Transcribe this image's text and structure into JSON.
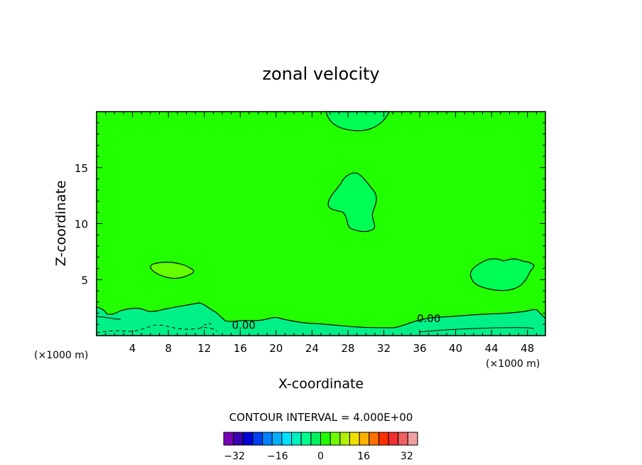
{
  "chart_data": {
    "type": "contour",
    "title": "zonal velocity",
    "xlabel": "X-coordinate",
    "ylabel": "Z-coordinate",
    "x_unit_label": "(×1000 m)",
    "y_unit_label": "(×1000 m)",
    "xlim": [
      0,
      50
    ],
    "ylim": [
      0,
      20
    ],
    "x_ticks": [
      4,
      8,
      12,
      16,
      20,
      24,
      28,
      32,
      36,
      40,
      44,
      48
    ],
    "y_ticks": [
      5,
      10,
      15
    ],
    "contour_interval_text": "CONTOUR INTERVAL = 4.000E+00",
    "contour_labels": [
      {
        "text": "0.00",
        "x": 16.4,
        "z": 1.0
      },
      {
        "text": "0.00",
        "x": 37.0,
        "z": 1.6
      }
    ],
    "background_value_range": [
      0,
      4
    ],
    "features": [
      {
        "description": "weak positive cell",
        "x_range": [
          6.0,
          10.8
        ],
        "z_range": [
          5.2,
          6.6
        ],
        "value_range": [
          4,
          8
        ]
      },
      {
        "description": "slightly weaker cell",
        "x_range": [
          25.8,
          31.0
        ],
        "z_range": [
          9.6,
          14.5
        ],
        "value_range": [
          -4,
          0
        ]
      },
      {
        "description": "slightly weaker cell",
        "x_range": [
          41.5,
          48.4
        ],
        "z_range": [
          4.0,
          6.8
        ],
        "value_range": [
          -4,
          0
        ]
      },
      {
        "description": "slightly weaker cell at top",
        "x_range": [
          25.6,
          31.5
        ],
        "z_range": [
          18.2,
          20.0
        ],
        "value_range": [
          -4,
          0
        ]
      },
      {
        "description": "near-surface negative layer",
        "x_range": [
          0,
          50
        ],
        "z_range": [
          0,
          2.6
        ],
        "value_range": [
          -8,
          0
        ]
      }
    ],
    "colorbar": {
      "tick_labels": [
        "-32",
        "-16",
        "0",
        "16",
        "32"
      ],
      "tick_values": [
        -32,
        -16,
        0,
        16,
        32
      ],
      "range": [
        -36,
        36
      ],
      "step": 4,
      "colors": [
        "#7a00b8",
        "#3a00b0",
        "#0000d8",
        "#0040f0",
        "#0080ff",
        "#00b0ff",
        "#00e0ff",
        "#00f0c0",
        "#00ff90",
        "#00f060",
        "#20ff00",
        "#70ff00",
        "#b0f000",
        "#f0e000",
        "#ffb000",
        "#ff7000",
        "#ff3000",
        "#f03030",
        "#f06060",
        "#f0a0a0"
      ]
    },
    "fill_colors": {
      "background": "#22ff00",
      "weak_positive": "#66ff00",
      "weak_negative": "#00ff55",
      "negative_layer": "#00f088"
    }
  }
}
